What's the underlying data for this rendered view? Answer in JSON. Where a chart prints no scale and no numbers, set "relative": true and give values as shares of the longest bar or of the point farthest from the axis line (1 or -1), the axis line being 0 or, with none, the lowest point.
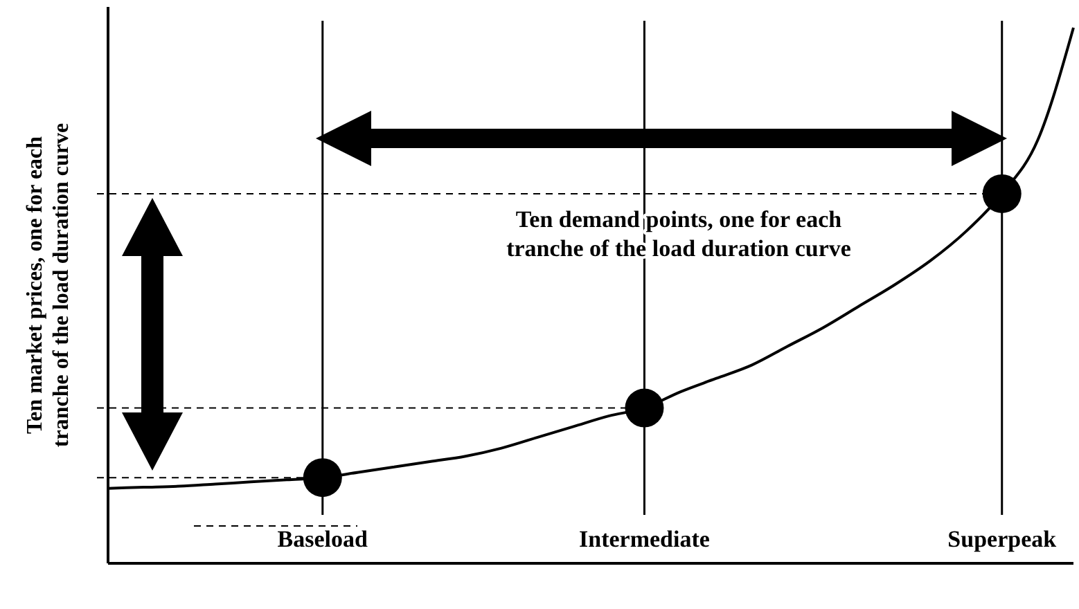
{
  "chart_data": {
    "type": "line",
    "relative": true,
    "ylabel": "Ten market prices, one for each\ntranche of the load duration curve",
    "annotations": [
      "Ten demand points, one for each\ntranche of the load duration curve"
    ],
    "categories": [
      null,
      null,
      null,
      null,
      null,
      null,
      "Baseload",
      null,
      null,
      null,
      null,
      null,
      null,
      null,
      null,
      "Intermediate",
      null,
      null,
      null,
      null,
      null,
      null,
      null,
      null,
      null,
      "Superpeak",
      null,
      null
    ],
    "grid": "x",
    "series": [
      {
        "color": "#000000",
        "marker": "none",
        "values": [
          0.14,
          0.142,
          0.144,
          0.148,
          0.152,
          0.156,
          0.16,
          0.17,
          0.18,
          0.19,
          0.2,
          0.215,
          0.235,
          0.255,
          0.275,
          0.29,
          0.32,
          0.345,
          0.37,
          0.405,
          0.44,
          0.48,
          0.52,
          0.565,
          0.62,
          0.69,
          0.79,
          1.0
        ]
      },
      {
        "type": "scatter",
        "color": "#000000",
        "marker": "circle",
        "values": [
          null,
          null,
          null,
          null,
          null,
          null,
          0.16,
          null,
          null,
          null,
          null,
          null,
          null,
          null,
          null,
          0.29,
          null,
          null,
          null,
          null,
          null,
          null,
          null,
          null,
          null,
          0.69,
          null,
          null
        ]
      }
    ],
    "ref_lines": [
      {
        "axis": "y",
        "value": 0.16,
        "line_style": "dashed"
      },
      {
        "axis": "y",
        "value": 0.29,
        "line_style": "dashed"
      },
      {
        "axis": "y",
        "value": 0.69,
        "line_style": "dashed"
      }
    ]
  }
}
